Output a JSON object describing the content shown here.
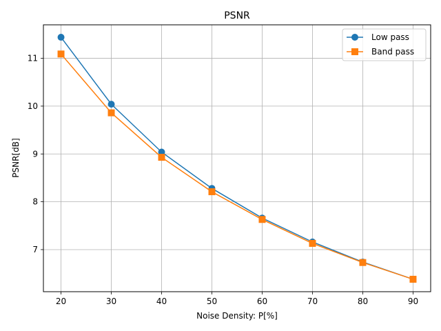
{
  "chart_data": {
    "type": "line",
    "title": "PSNR",
    "xlabel": "Noise Density: P[%]",
    "ylabel": "PSNR[dB]",
    "x": [
      20,
      30,
      40,
      50,
      60,
      70,
      80,
      90
    ],
    "xlim": [
      16.5,
      93.5
    ],
    "ylim": [
      6.12,
      11.7
    ],
    "xticks": [
      20,
      30,
      40,
      50,
      60,
      70,
      80,
      90
    ],
    "yticks": [
      7,
      8,
      9,
      10,
      11
    ],
    "grid": true,
    "legend_position": "top-right",
    "series": [
      {
        "name": "Low pass",
        "marker": "circle",
        "color": "#1f77b4",
        "values": [
          11.44,
          10.04,
          9.04,
          8.28,
          7.66,
          7.16,
          6.74,
          6.38
        ]
      },
      {
        "name": "Band pass",
        "marker": "square",
        "color": "#ff7f0e",
        "values": [
          11.09,
          9.86,
          8.93,
          8.21,
          7.63,
          7.13,
          6.73,
          6.38
        ]
      }
    ]
  }
}
